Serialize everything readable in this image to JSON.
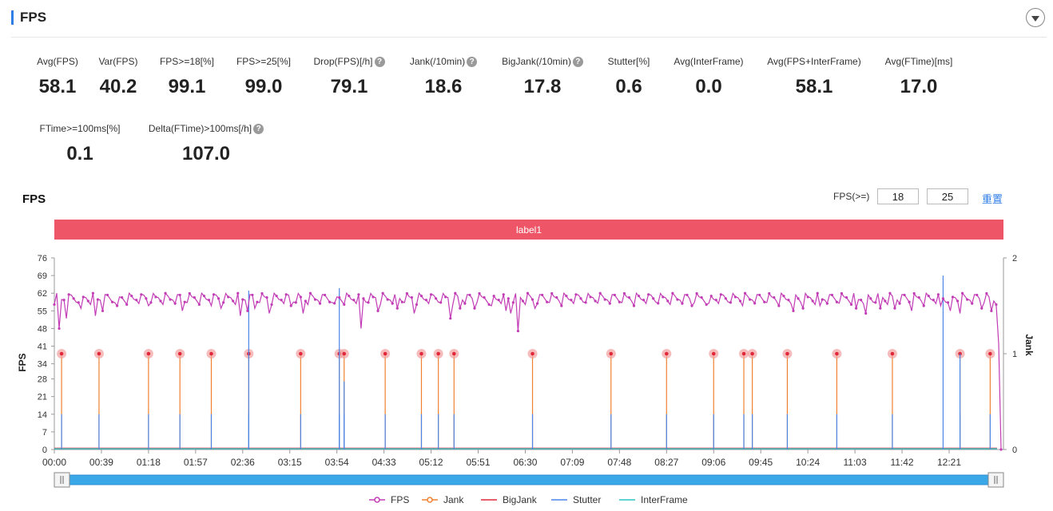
{
  "section": {
    "title": "FPS"
  },
  "metrics_row1": [
    {
      "label": "Avg(FPS)",
      "value": "58.1",
      "help": false
    },
    {
      "label": "Var(FPS)",
      "value": "40.2",
      "help": false
    },
    {
      "label": "FPS>=18[%]",
      "value": "99.1",
      "help": false
    },
    {
      "label": "FPS>=25[%]",
      "value": "99.0",
      "help": false
    },
    {
      "label": "Drop(FPS)[/h]",
      "value": "79.1",
      "help": true
    },
    {
      "label": "Jank(/10min)",
      "value": "18.6",
      "help": true
    },
    {
      "label": "BigJank(/10min)",
      "value": "17.8",
      "help": true
    },
    {
      "label": "Stutter[%]",
      "value": "0.6",
      "help": false
    },
    {
      "label": "Avg(InterFrame)",
      "value": "0.0",
      "help": false
    },
    {
      "label": "Avg(FPS+InterFrame)",
      "value": "58.1",
      "help": false
    },
    {
      "label": "Avg(FTime)[ms]",
      "value": "17.0",
      "help": false
    }
  ],
  "metrics_row2": [
    {
      "label": "FTime>=100ms[%]",
      "value": "0.1",
      "help": false
    },
    {
      "label": "Delta(FTime)>100ms[/h]",
      "value": "107.0",
      "help": true
    }
  ],
  "help_glyph": "?",
  "chart_controls": {
    "title": "FPS",
    "threshold_label": "FPS(>=)",
    "threshold_low": "18",
    "threshold_high": "25",
    "reset_label": "重置"
  },
  "label_band": {
    "text": "label1",
    "color": "#ee5566"
  },
  "chart_data": {
    "type": "line",
    "x_ticks": [
      "00:00",
      "00:39",
      "01:18",
      "01:57",
      "02:36",
      "03:15",
      "03:54",
      "04:33",
      "05:12",
      "05:51",
      "06:30",
      "07:09",
      "07:48",
      "08:27",
      "09:06",
      "09:45",
      "10:24",
      "11:03",
      "11:42",
      "12:21"
    ],
    "x_range_seconds": [
      0,
      786
    ],
    "y_left": {
      "label": "FPS",
      "ticks": [
        0,
        7,
        14,
        21,
        28,
        34,
        41,
        48,
        55,
        62,
        69,
        76
      ],
      "range": [
        0,
        76
      ]
    },
    "y_right": {
      "label": "Jank",
      "ticks": [
        0,
        1,
        2
      ],
      "range": [
        0,
        2
      ]
    },
    "fps_baseline": 60,
    "fps_dips": [
      [
        4,
        48
      ],
      [
        10,
        52
      ],
      [
        22,
        56
      ],
      [
        34,
        53
      ],
      [
        40,
        55
      ],
      [
        52,
        57
      ],
      [
        78,
        57
      ],
      [
        105,
        55
      ],
      [
        130,
        57
      ],
      [
        138,
        56
      ],
      [
        153,
        53
      ],
      [
        160,
        55
      ],
      [
        166,
        56
      ],
      [
        178,
        54
      ],
      [
        196,
        57
      ],
      [
        206,
        54
      ],
      [
        232,
        58
      ],
      [
        254,
        48
      ],
      [
        268,
        55
      ],
      [
        284,
        56
      ],
      [
        298,
        54
      ],
      [
        328,
        52
      ],
      [
        335,
        56
      ],
      [
        348,
        56
      ],
      [
        362,
        57
      ],
      [
        374,
        55
      ],
      [
        377,
        54
      ],
      [
        384,
        47
      ],
      [
        398,
        56
      ],
      [
        420,
        57
      ],
      [
        450,
        58
      ],
      [
        480,
        57
      ],
      [
        500,
        58
      ],
      [
        528,
        57
      ],
      [
        542,
        58
      ],
      [
        570,
        57
      ],
      [
        580,
        58
      ],
      [
        600,
        57
      ],
      [
        612,
        55
      ],
      [
        620,
        56
      ],
      [
        634,
        57
      ],
      [
        650,
        58
      ],
      [
        664,
        56
      ],
      [
        672,
        54
      ],
      [
        684,
        56
      ],
      [
        696,
        56
      ],
      [
        710,
        55
      ],
      [
        720,
        57
      ],
      [
        734,
        57
      ],
      [
        742,
        55
      ],
      [
        750,
        54
      ],
      [
        768,
        56
      ],
      [
        776,
        55
      ]
    ],
    "jank_events_s": [
      6,
      37,
      78,
      104,
      130,
      161,
      204,
      236,
      240,
      274,
      304,
      318,
      331,
      396,
      461,
      507,
      546,
      571,
      578,
      607,
      648,
      694,
      750,
      775
    ],
    "jank_value": 1,
    "stutter_spikes": [
      [
        161,
        63
      ],
      [
        236,
        64
      ],
      [
        240,
        27
      ],
      [
        736,
        69
      ],
      [
        750,
        38
      ]
    ],
    "series": [
      {
        "name": "FPS",
        "color": "#c23cb6"
      },
      {
        "name": "Jank",
        "color": "#f08030"
      },
      {
        "name": "BigJank",
        "color": "#e0283a"
      },
      {
        "name": "Stutter",
        "color": "#4a86e8"
      },
      {
        "name": "InterFrame",
        "color": "#2ac3c3"
      }
    ],
    "legend_position": "bottom-center",
    "grid": false
  }
}
